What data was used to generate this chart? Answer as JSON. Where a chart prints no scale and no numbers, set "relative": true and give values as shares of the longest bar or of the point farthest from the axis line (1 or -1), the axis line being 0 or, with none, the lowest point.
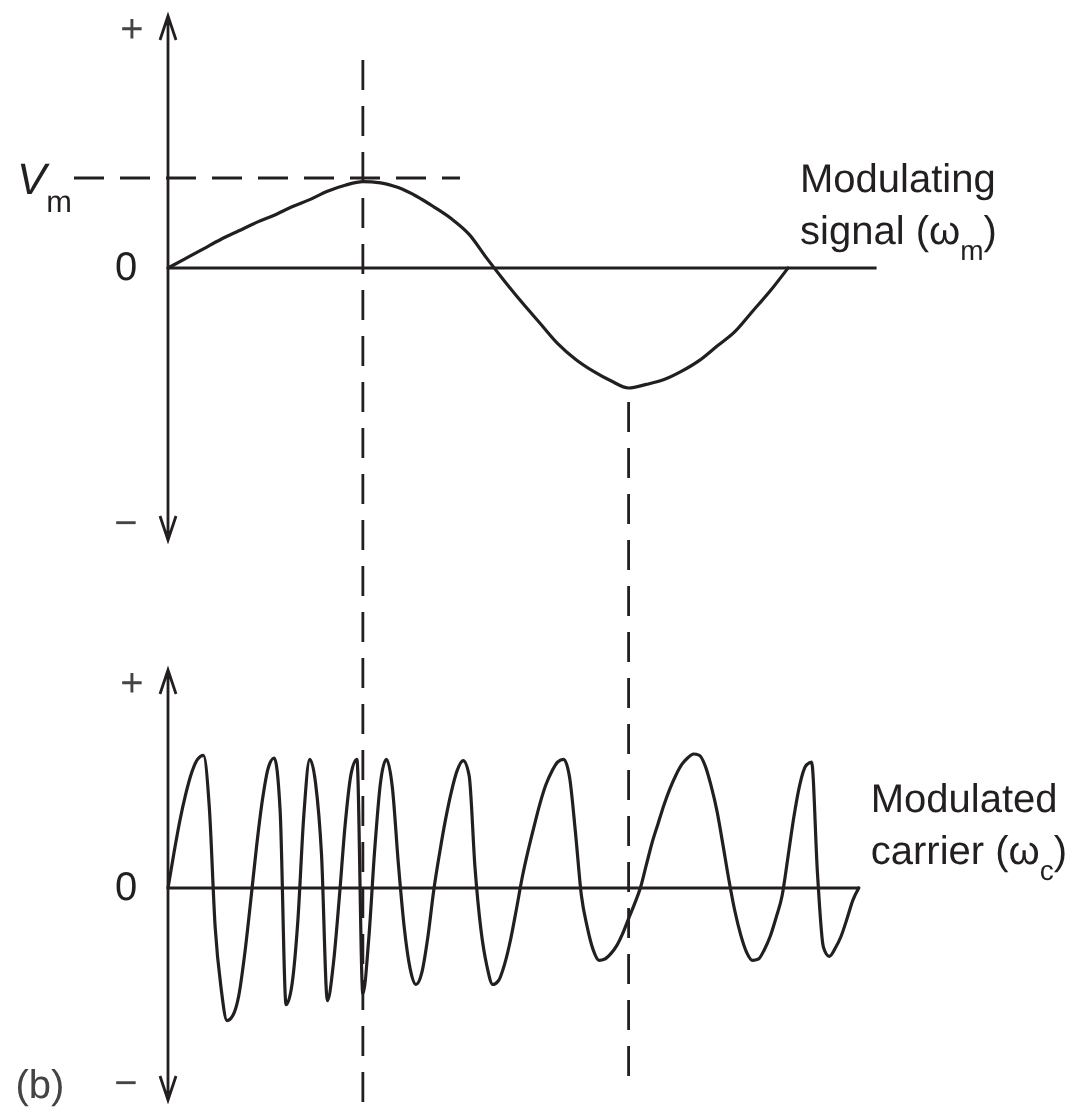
{
  "chart_data": [
    {
      "type": "line",
      "relative": true,
      "categories": [
        null,
        null,
        null,
        null,
        null,
        null,
        null,
        null,
        null,
        null,
        null,
        null,
        null,
        null,
        null,
        null,
        null,
        null,
        null,
        null,
        null,
        null,
        null,
        null,
        null,
        null,
        null,
        null,
        null,
        null,
        null,
        null,
        null,
        null,
        null,
        null,
        null,
        null,
        null,
        null,
        null
      ],
      "series": [
        {
          "name": "Modulating signal (ω$_{m}$)",
          "color": "#231f20",
          "values": [
            0,
            0.08,
            0.16,
            0.24,
            0.31,
            0.38,
            0.44,
            0.51,
            0.57,
            0.64,
            0.69,
            0.72,
            0.71,
            0.67,
            0.6,
            0.51,
            0.41,
            0.28,
            0.08,
            -0.11,
            -0.29,
            -0.46,
            -0.63,
            -0.76,
            -0.86,
            -0.94,
            -1,
            -0.97,
            -0.93,
            -0.86,
            -0.77,
            -0.65,
            -0.53,
            -0.36,
            -0.19,
            0,
            null,
            null,
            null,
            null,
            null
          ]
        }
      ],
      "ref_lines": [
        {
          "axis": "y",
          "value": 0.75,
          "label": "V$_{m}$",
          "line_style": "dashed"
        }
      ],
      "annotations": [
        "+",
        "0",
        "−"
      ]
    },
    {
      "type": "line",
      "relative": true,
      "categories": [
        null,
        null,
        null,
        null,
        null,
        null,
        null,
        null,
        null,
        null,
        null,
        null,
        null,
        null,
        null,
        null,
        null,
        null,
        null,
        null,
        null,
        null,
        null,
        null,
        null,
        null,
        null,
        null,
        null,
        null,
        null,
        null,
        null,
        null,
        null,
        null,
        null,
        null,
        null,
        null,
        null,
        null,
        null,
        null,
        null,
        null,
        null,
        null,
        null,
        null,
        null,
        null,
        null,
        null,
        null,
        null,
        null,
        null,
        null,
        null,
        null,
        null,
        null,
        null,
        null,
        null,
        null,
        null,
        null,
        null,
        null,
        null,
        null,
        null,
        null,
        null,
        null,
        null,
        null,
        null,
        null,
        null,
        null,
        null,
        null,
        null,
        null,
        null,
        null,
        null,
        null,
        null,
        null,
        null,
        null,
        null,
        null,
        null,
        null,
        null,
        null,
        null,
        null,
        null,
        null,
        null,
        null,
        null,
        null,
        null,
        null,
        null,
        null,
        null,
        null,
        null,
        null,
        null
      ],
      "series": [
        {
          "name": "Modulated carrier (ω$_{c}$)",
          "color": "#231f20",
          "values": [
            0,
            0.26,
            0.5,
            0.7,
            0.86,
            0.96,
            0.99,
            0.6,
            -0.3,
            -0.75,
            -0.99,
            -0.95,
            -0.8,
            -0.49,
            -0.1,
            0.31,
            0.66,
            0.9,
            0.97,
            0.57,
            -0.87,
            -0.72,
            -0.24,
            0.54,
            0.96,
            0.78,
            0.25,
            -0.84,
            -0.57,
            -0.08,
            0.47,
            0.85,
            0.96,
            -0.79,
            -0.38,
            0.28,
            0.79,
            0.96,
            0.75,
            0.19,
            -0.29,
            -0.6,
            -0.72,
            -0.63,
            -0.37,
            -0.02,
            0.26,
            0.51,
            0.72,
            0.88,
            0.95,
            0.84,
            0.15,
            -0.31,
            -0.58,
            -0.72,
            -0.69,
            -0.57,
            -0.39,
            -0.16,
            0.08,
            0.28,
            0.46,
            0.63,
            0.77,
            0.87,
            0.94,
            0.96,
            0.83,
            0.42,
            -0.05,
            -0.29,
            -0.46,
            -0.54,
            -0.53,
            -0.49,
            -0.43,
            -0.34,
            -0.23,
            -0.12,
            0,
            0.17,
            0.34,
            0.48,
            0.62,
            0.74,
            0.84,
            0.92,
            0.97,
            1,
            0.99,
            0.91,
            0.76,
            0.57,
            0.32,
            0.06,
            -0.17,
            -0.35,
            -0.48,
            -0.54,
            -0.53,
            -0.46,
            -0.36,
            -0.22,
            -0.06,
            0.23,
            0.53,
            0.77,
            0.91,
            0.94,
            0.11,
            -0.44,
            -0.51,
            -0.45,
            -0.36,
            -0.23,
            -0.09,
            0
          ]
        }
      ],
      "annotations": [
        "+",
        "0",
        "−",
        "(b)"
      ]
    }
  ]
}
